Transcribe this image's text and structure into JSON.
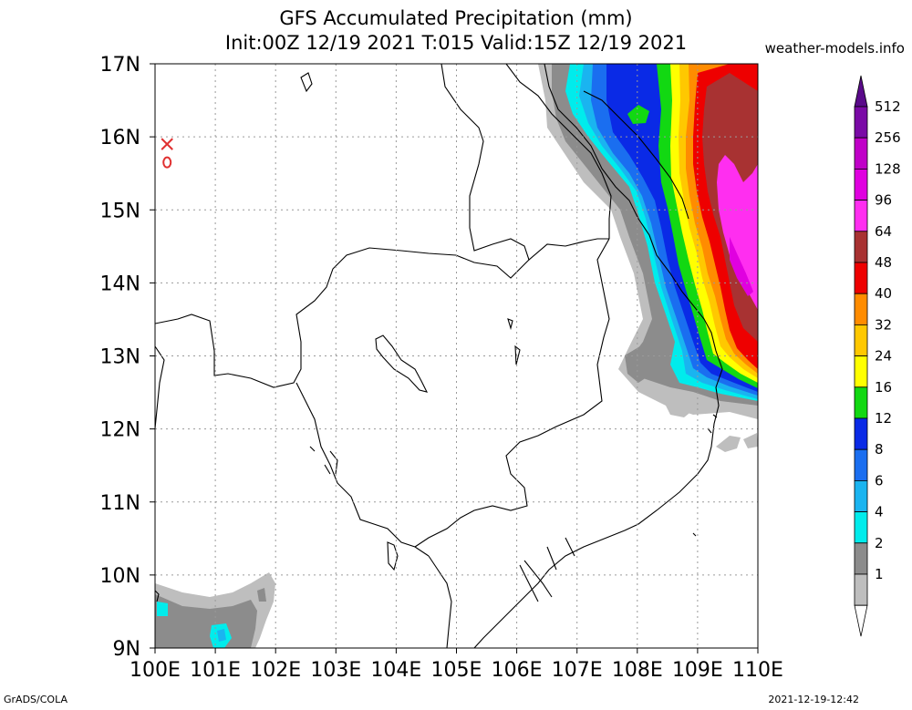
{
  "title_line1": "GFS Accumulated Precipitation (mm)",
  "title_line2": "Init:00Z 12/19 2021 T:015 Valid:15Z 12/19 2021",
  "site": "weather-models.info",
  "footer_left": "GrADS/COLA",
  "footer_right": "2021-12-19-12:42",
  "map": {
    "lat_labels": [
      "17N",
      "16N",
      "15N",
      "14N",
      "13N",
      "12N",
      "11N",
      "10N",
      "9N"
    ],
    "lon_labels": [
      "100E",
      "101E",
      "102E",
      "103E",
      "104E",
      "105E",
      "106E",
      "107E",
      "108E",
      "109E",
      "110E"
    ],
    "lon_range": [
      100,
      110
    ],
    "lat_range": [
      9,
      17
    ],
    "grid": "dotted",
    "markers": [
      {
        "symbol": "X",
        "lon": 100.2,
        "lat": 15.9,
        "color": "#e03030"
      },
      {
        "symbol": "O",
        "lon": 100.2,
        "lat": 15.65,
        "color": "#e03030"
      }
    ]
  },
  "legend": {
    "items": [
      {
        "label": "512",
        "color": "#7a0aa6"
      },
      {
        "label": "256",
        "color": "#c000c8"
      },
      {
        "label": "128",
        "color": "#e000e0"
      },
      {
        "label": "96",
        "color": "#ff2ef0"
      },
      {
        "label": "64",
        "color": "#a83232"
      },
      {
        "label": "48",
        "color": "#ee0000"
      },
      {
        "label": "40",
        "color": "#ff8c00"
      },
      {
        "label": "32",
        "color": "#ffc800"
      },
      {
        "label": "24",
        "color": "#ffff00"
      },
      {
        "label": "16",
        "color": "#12d812"
      },
      {
        "label": "12",
        "color": "#0a2ae6"
      },
      {
        "label": "8",
        "color": "#1a6ef0"
      },
      {
        "label": "6",
        "color": "#1ab4f0"
      },
      {
        "label": "4",
        "color": "#00ecec"
      },
      {
        "label": "2",
        "color": "#8c8c8c"
      },
      {
        "label": "1",
        "color": "#bebebe"
      }
    ]
  }
}
